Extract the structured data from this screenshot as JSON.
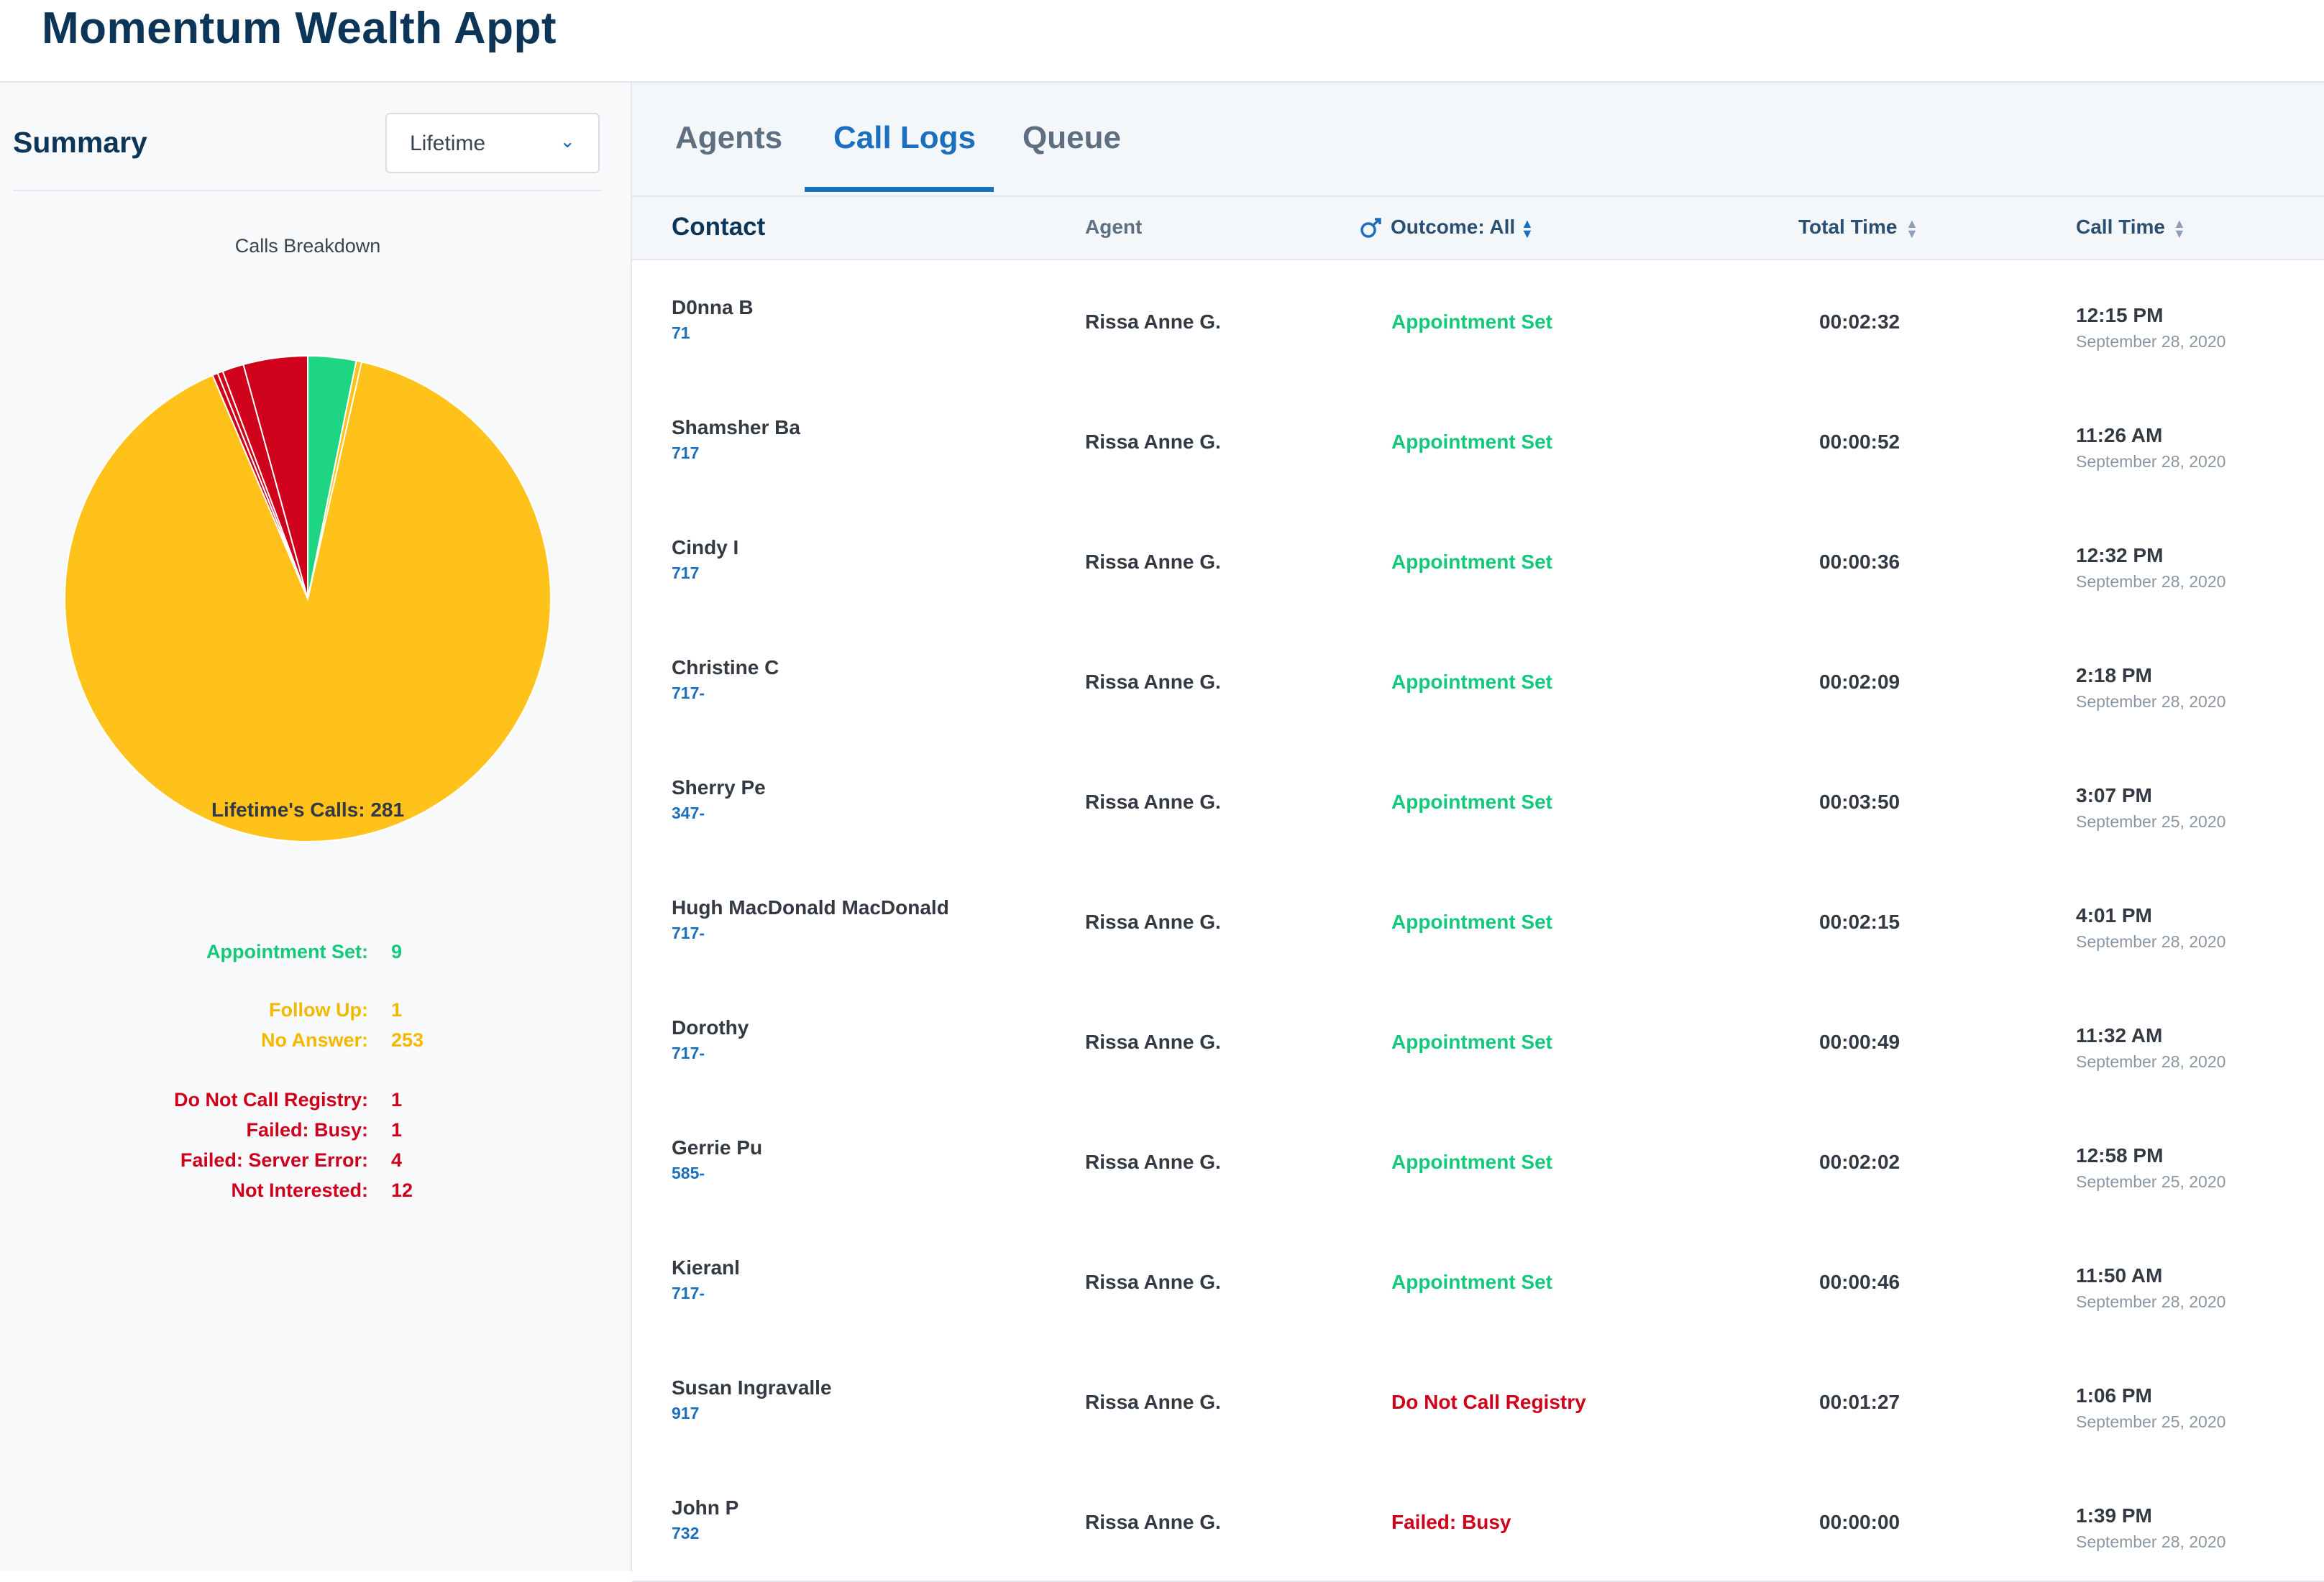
{
  "app": {
    "title": "Momentum Wealth Appt"
  },
  "summary": {
    "title": "Summary",
    "period": "Lifetime",
    "chart_title": "Calls Breakdown",
    "total_label": "Lifetime's Calls: 281",
    "stats": [
      {
        "label": "Appointment Set:",
        "value": "9",
        "color": "green"
      },
      {
        "label": "Follow Up:",
        "value": "1",
        "color": "yellow"
      },
      {
        "label": "No Answer:",
        "value": "253",
        "color": "yellow"
      },
      {
        "label": "Do Not Call Registry:",
        "value": "1",
        "color": "red"
      },
      {
        "label": "Failed: Busy:",
        "value": "1",
        "color": "red"
      },
      {
        "label": "Failed: Server Error:",
        "value": "4",
        "color": "red"
      },
      {
        "label": "Not Interested:",
        "value": "12",
        "color": "red"
      }
    ]
  },
  "chart_data": {
    "type": "pie",
    "title": "Calls Breakdown",
    "categories": [
      "Appointment Set",
      "Follow Up",
      "No Answer",
      "Do Not Call Registry",
      "Failed: Busy",
      "Failed: Server Error",
      "Not Interested"
    ],
    "values": [
      9,
      1,
      253,
      1,
      1,
      4,
      12
    ],
    "colors": [
      "#1ed583",
      "#ffc21a",
      "#ffc21a",
      "#d0021b",
      "#d0021b",
      "#d0021b",
      "#d0021b"
    ]
  },
  "tabs": [
    {
      "label": "Agents",
      "active": false
    },
    {
      "label": "Call Logs",
      "active": true
    },
    {
      "label": "Queue",
      "active": false
    }
  ],
  "table": {
    "headers": {
      "contact": "Contact",
      "agent": "Agent",
      "outcome": "Outcome: All",
      "total_time": "Total Time",
      "call_time": "Call Time"
    },
    "rows": [
      {
        "name": "D0nna B",
        "phone": "71",
        "agent": "Rissa Anne G.",
        "outcome": "Appointment Set",
        "outcome_color": "green",
        "total": "00:02:32",
        "time": "12:15 PM",
        "date": "September 28, 2020"
      },
      {
        "name": "Shamsher Ba",
        "phone": "717",
        "agent": "Rissa Anne G.",
        "outcome": "Appointment Set",
        "outcome_color": "green",
        "total": "00:00:52",
        "time": "11:26 AM",
        "date": "September 28, 2020"
      },
      {
        "name": "Cindy I",
        "phone": "717",
        "agent": "Rissa Anne G.",
        "outcome": "Appointment Set",
        "outcome_color": "green",
        "total": "00:00:36",
        "time": "12:32 PM",
        "date": "September 28, 2020"
      },
      {
        "name": "Christine C",
        "phone": "717-",
        "agent": "Rissa Anne G.",
        "outcome": "Appointment Set",
        "outcome_color": "green",
        "total": "00:02:09",
        "time": "2:18 PM",
        "date": "September 28, 2020"
      },
      {
        "name": "Sherry Pe",
        "phone": "347-",
        "agent": "Rissa Anne G.",
        "outcome": "Appointment Set",
        "outcome_color": "green",
        "total": "00:03:50",
        "time": "3:07 PM",
        "date": "September 25, 2020"
      },
      {
        "name": "Hugh MacDonald MacDonald",
        "phone": "717-",
        "agent": "Rissa Anne G.",
        "outcome": "Appointment Set",
        "outcome_color": "green",
        "total": "00:02:15",
        "time": "4:01 PM",
        "date": "September 28, 2020"
      },
      {
        "name": "Dorothy",
        "phone": "717-",
        "agent": "Rissa Anne G.",
        "outcome": "Appointment Set",
        "outcome_color": "green",
        "total": "00:00:49",
        "time": "11:32 AM",
        "date": "September 28, 2020"
      },
      {
        "name": "Gerrie Pu",
        "phone": "585-",
        "agent": "Rissa Anne G.",
        "outcome": "Appointment Set",
        "outcome_color": "green",
        "total": "00:02:02",
        "time": "12:58 PM",
        "date": "September 25, 2020"
      },
      {
        "name": "Kieranl",
        "phone": "717-",
        "agent": "Rissa Anne G.",
        "outcome": "Appointment Set",
        "outcome_color": "green",
        "total": "00:00:46",
        "time": "11:50 AM",
        "date": "September 28, 2020"
      },
      {
        "name": "Susan Ingravalle",
        "phone": "917",
        "agent": "Rissa Anne G.",
        "outcome": "Do Not Call Registry",
        "outcome_color": "red",
        "total": "00:01:27",
        "time": "1:06 PM",
        "date": "September 25, 2020"
      },
      {
        "name": "John P",
        "phone": "732",
        "agent": "Rissa Anne G.",
        "outcome": "Failed: Busy",
        "outcome_color": "red",
        "total": "00:00:00",
        "time": "1:39 PM",
        "date": "September 28, 2020"
      }
    ]
  }
}
